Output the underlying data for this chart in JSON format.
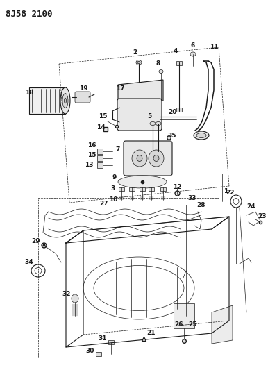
{
  "title": "8J58 2100",
  "bg_color": "#ffffff",
  "line_color": "#1a1a1a",
  "title_fontsize": 9,
  "label_fontsize": 6.5,
  "fig_width": 3.99,
  "fig_height": 5.33,
  "dpi": 100
}
